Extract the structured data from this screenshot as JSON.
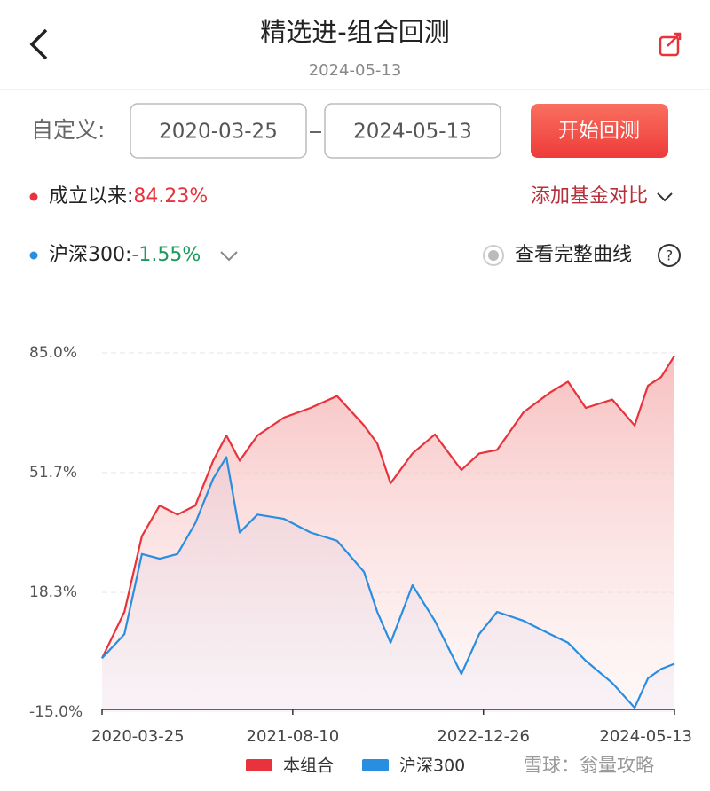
{
  "header": {
    "title": "精选进-组合回测",
    "date": "2024-05-13"
  },
  "controls": {
    "label": "自定义:",
    "start": "2020-03-25",
    "end": "2024-05-13",
    "button": "开始回测"
  },
  "stats": {
    "since_label": "成立以来:",
    "since_value": "84.23%",
    "add_compare": "添加基金对比",
    "bench_label": "沪深300:",
    "bench_value": "-1.55%",
    "full_curve": "查看完整曲线"
  },
  "chart_data": {
    "type": "line",
    "x": [
      "2020-03-25",
      "2020-05-23",
      "2020-07-08",
      "2020-08-24",
      "2020-10-10",
      "2020-11-26",
      "2021-01-12",
      "2021-02-16",
      "2021-03-23",
      "2021-05-09",
      "2021-07-18",
      "2021-09-26",
      "2021-12-05",
      "2022-02-14",
      "2022-03-21",
      "2022-04-25",
      "2022-06-22",
      "2022-08-20",
      "2022-10-29",
      "2022-12-15",
      "2023-01-31",
      "2023-04-11",
      "2023-06-20",
      "2023-08-06",
      "2023-09-22",
      "2023-12-01",
      "2024-01-29",
      "2024-03-04",
      "2024-04-08",
      "2024-05-13"
    ],
    "series": [
      {
        "name": "本组合",
        "color": "#e8323c",
        "values": [
          0,
          12.9,
          34,
          42.5,
          40,
          42.5,
          55,
          62,
          55,
          62,
          67,
          69.7,
          73,
          64.8,
          59.8,
          48.7,
          57,
          62.3,
          52.4,
          57,
          58,
          68.5,
          74,
          77,
          69.7,
          72,
          64.8,
          75.9,
          78.3,
          84.2
        ]
      },
      {
        "name": "沪深300",
        "color": "#2a8ee0",
        "values": [
          0,
          6.7,
          29,
          27.7,
          29,
          37.6,
          50,
          56,
          35,
          40,
          38.8,
          35,
          32.7,
          24,
          12.9,
          4.3,
          20.3,
          10.4,
          -4.4,
          6.7,
          12.9,
          10.4,
          6.7,
          4.3,
          -0.7,
          -6.9,
          -13.8,
          -5.6,
          -3,
          -1.55
        ]
      }
    ],
    "xlim": [
      "2020-03-25",
      "2024-05-13"
    ],
    "xticks": [
      "2020-03-25",
      "2021-08-10",
      "2022-12-26",
      "2024-05-13"
    ],
    "ylim": [
      -15,
      85
    ],
    "yticks": [
      {
        "value": -15,
        "label": "-15.0%"
      },
      {
        "value": 18.3,
        "label": "18.3%"
      },
      {
        "value": 51.7,
        "label": "51.7%"
      },
      {
        "value": 85,
        "label": "85.0%"
      }
    ],
    "grid": true
  },
  "footer": {
    "watermark": "雪球：翁量攻略"
  }
}
